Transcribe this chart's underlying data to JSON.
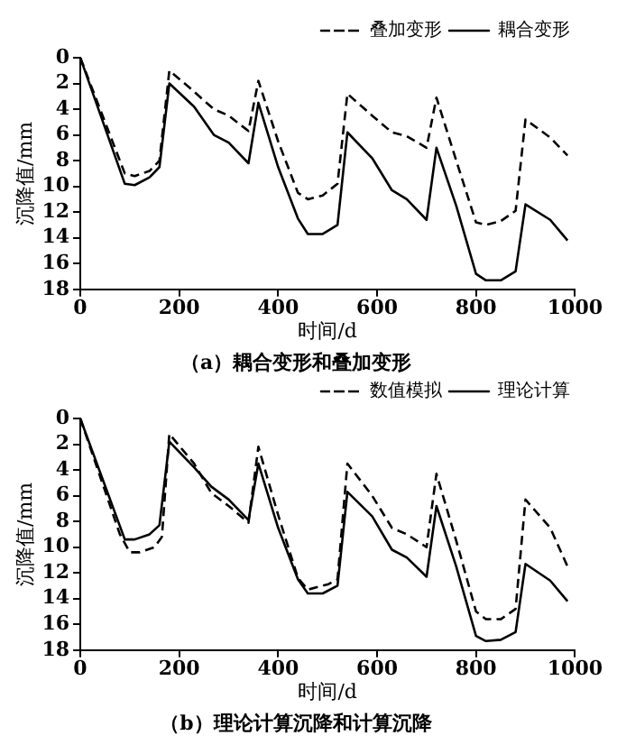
{
  "chart_data": [
    {
      "type": "line",
      "title": "（a）耦合变形和叠加变形",
      "xlabel": "时间/d",
      "ylabel": "沉降值/mm",
      "xlim": [
        0,
        1000
      ],
      "xticks": [
        0,
        200,
        400,
        600,
        800,
        1000
      ],
      "ylim": [
        18,
        0
      ],
      "yticks": [
        0,
        2,
        4,
        6,
        8,
        10,
        12,
        14,
        16,
        18
      ],
      "grid": false,
      "legend": "top right",
      "marker": "none",
      "series": [
        {
          "name": "叠加变形",
          "color": "#000000",
          "line_style": "dashed",
          "x": [
            0,
            90,
            110,
            140,
            160,
            180,
            220,
            270,
            300,
            340,
            360,
            400,
            440,
            460,
            490,
            520,
            540,
            590,
            630,
            660,
            700,
            720,
            760,
            800,
            820,
            850,
            880,
            900,
            950,
            985
          ],
          "values": [
            0,
            9,
            9.2,
            8.8,
            8,
            1,
            2.3,
            4,
            4.5,
            5.7,
            1.8,
            6.5,
            10.5,
            11,
            10.7,
            9.8,
            2.8,
            4.5,
            5.8,
            6.1,
            7,
            3.1,
            8,
            12.8,
            13,
            12.7,
            11.9,
            4.8,
            6.2,
            7.6
          ]
        },
        {
          "name": "耦合变形",
          "color": "#000000",
          "line_style": "solid",
          "x": [
            0,
            90,
            110,
            140,
            160,
            180,
            230,
            270,
            300,
            340,
            360,
            400,
            440,
            460,
            490,
            520,
            540,
            590,
            630,
            660,
            700,
            720,
            760,
            800,
            820,
            850,
            880,
            900,
            950,
            985
          ],
          "values": [
            0,
            9.8,
            9.9,
            9.3,
            8.5,
            2,
            3.8,
            6,
            6.6,
            8.2,
            3.5,
            8.5,
            12.5,
            13.7,
            13.7,
            13,
            5.8,
            7.8,
            10.3,
            11,
            12.6,
            7,
            11.5,
            16.8,
            17.3,
            17.3,
            16.6,
            11.4,
            12.6,
            14.2
          ]
        }
      ]
    },
    {
      "type": "line",
      "title": "（b）理论计算沉降和计算沉降",
      "xlabel": "时间/d",
      "ylabel": "沉降值/mm",
      "xlim": [
        0,
        1000
      ],
      "xticks": [
        0,
        200,
        400,
        600,
        800,
        1000
      ],
      "ylim": [
        18,
        0
      ],
      "yticks": [
        0,
        2,
        4,
        6,
        8,
        10,
        12,
        14,
        16,
        18
      ],
      "grid": false,
      "legend": "top right",
      "marker": "none",
      "series": [
        {
          "name": "数值模拟",
          "color": "#000000",
          "line_style": "dashed",
          "x": [
            0,
            80,
            100,
            120,
            150,
            165,
            180,
            230,
            265,
            300,
            340,
            360,
            400,
            440,
            460,
            500,
            520,
            540,
            590,
            630,
            660,
            700,
            720,
            760,
            800,
            820,
            850,
            880,
            900,
            950,
            985
          ],
          "values": [
            0,
            9,
            10.4,
            10.4,
            10,
            9.2,
            1.2,
            3.5,
            5.8,
            6.8,
            8.1,
            2.2,
            7.5,
            12.4,
            13.3,
            12.9,
            12.5,
            3.5,
            6,
            8.5,
            9,
            10,
            4.3,
            9.5,
            15,
            15.6,
            15.6,
            14.8,
            6.3,
            8.5,
            11.5
          ]
        },
        {
          "name": "理论计算",
          "color": "#000000",
          "line_style": "solid",
          "x": [
            0,
            90,
            110,
            140,
            160,
            180,
            230,
            265,
            300,
            340,
            360,
            400,
            440,
            460,
            490,
            520,
            540,
            590,
            630,
            660,
            700,
            720,
            760,
            800,
            820,
            850,
            880,
            900,
            950,
            985
          ],
          "values": [
            0,
            9.4,
            9.4,
            9,
            8.3,
            1.8,
            3.8,
            5.3,
            6.3,
            7.9,
            3.5,
            8.5,
            12.5,
            13.6,
            13.6,
            13,
            5.7,
            7.6,
            10.2,
            10.8,
            12.3,
            6.8,
            11.5,
            16.9,
            17.3,
            17.2,
            16.6,
            11.3,
            12.6,
            14.2
          ]
        }
      ]
    }
  ]
}
